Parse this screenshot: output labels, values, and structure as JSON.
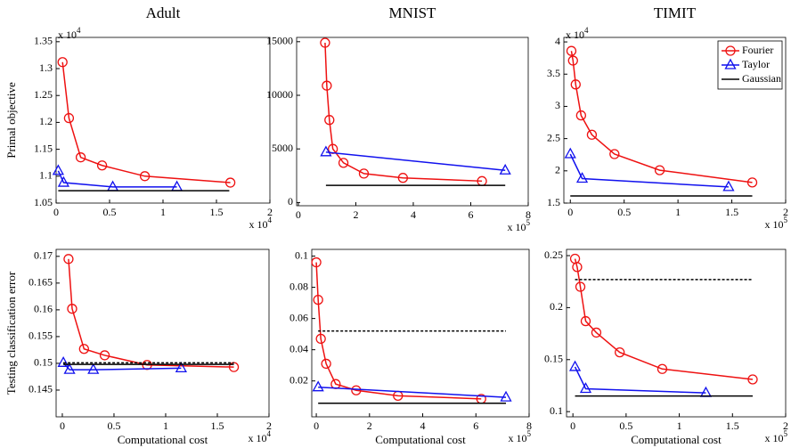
{
  "chart_data": [
    {
      "type": "line",
      "title": "Adult",
      "ylabel": "Primal objective",
      "x_multiplier": {
        "text": "x 10",
        "power": "4"
      },
      "y_multiplier": {
        "text": "x 10",
        "power": "4"
      },
      "xlim": [
        0,
        2
      ],
      "xticks": [
        0,
        0.5,
        1,
        1.5,
        2
      ],
      "ylim": [
        1.05,
        1.358
      ],
      "yticks": [
        1.05,
        1.1,
        1.15,
        1.2,
        1.25,
        1.3,
        1.35
      ],
      "series": [
        {
          "name": "Fourier",
          "color": "#ee1111",
          "marker": "circle",
          "x": [
            0.06,
            0.12,
            0.23,
            0.43,
            0.83,
            1.63
          ],
          "values": [
            1.312,
            1.208,
            1.135,
            1.12,
            1.1,
            1.088
          ]
        },
        {
          "name": "Taylor",
          "color": "#1111ee",
          "marker": "triangle",
          "x": [
            0.02,
            0.07,
            0.53,
            1.13
          ],
          "values": [
            1.11,
            1.088,
            1.08,
            1.08
          ]
        },
        {
          "name": "Gaussian",
          "color": "#000000",
          "x": [
            0.02,
            1.62
          ],
          "values": [
            1.073,
            1.073
          ]
        }
      ]
    },
    {
      "type": "line",
      "title": "MNIST",
      "x_multiplier": {
        "text": "x 10",
        "power": "5"
      },
      "xlim": [
        -0.06,
        8
      ],
      "xticks": [
        0,
        2,
        4,
        6,
        8
      ],
      "ylim": [
        -300,
        15400
      ],
      "yticks": [
        0,
        5000,
        10000,
        15000
      ],
      "series": [
        {
          "name": "Fourier",
          "color": "#ee1111",
          "marker": "circle",
          "x": [
            0.93,
            0.99,
            1.08,
            1.2,
            1.57,
            2.28,
            3.64,
            6.39
          ],
          "values": [
            14900,
            10900,
            7700,
            5000,
            3700,
            2700,
            2300,
            2000
          ]
        },
        {
          "name": "Taylor",
          "color": "#1111ee",
          "marker": "triangle",
          "x": [
            0.96,
            7.2
          ],
          "values": [
            4700,
            3000
          ]
        },
        {
          "name": "Gaussian",
          "color": "#000000",
          "x": [
            0.96,
            7.2
          ],
          "values": [
            1600,
            1600
          ]
        }
      ]
    },
    {
      "type": "line",
      "title": "TIMIT",
      "legend": "top-right",
      "x_multiplier": {
        "text": "x 10",
        "power": "5"
      },
      "y_multiplier": {
        "text": "x 10",
        "power": "4"
      },
      "xlim": [
        -0.06,
        2
      ],
      "xticks": [
        0,
        0.5,
        1,
        1.5,
        2
      ],
      "ylim": [
        1.5,
        4.07
      ],
      "yticks": [
        1.5,
        2,
        2.5,
        3,
        3.5,
        4
      ],
      "series": [
        {
          "name": "Fourier",
          "color": "#ee1111",
          "marker": "circle",
          "x": [
            0.01,
            0.025,
            0.05,
            0.1,
            0.2,
            0.41,
            0.83,
            1.69
          ],
          "values": [
            3.86,
            3.71,
            3.34,
            2.86,
            2.56,
            2.26,
            2.01,
            1.82
          ]
        },
        {
          "name": "Taylor",
          "color": "#1111ee",
          "marker": "triangle",
          "x": [
            0,
            0.11,
            1.47
          ],
          "values": [
            2.26,
            1.88,
            1.75
          ]
        },
        {
          "name": "Gaussian",
          "color": "#000000",
          "x": [
            0,
            1.69
          ],
          "values": [
            1.61,
            1.61
          ]
        }
      ]
    },
    {
      "type": "line",
      "ylabel": "Testing classification error",
      "xlabel": "Computational cost",
      "x_multiplier": {
        "text": "x 10",
        "power": "4"
      },
      "xlim": [
        -0.06,
        2
      ],
      "xticks": [
        0,
        0.5,
        1,
        1.5,
        2
      ],
      "ylim": [
        0.14,
        0.1713
      ],
      "yticks": [
        0.145,
        0.15,
        0.155,
        0.16,
        0.165,
        0.17
      ],
      "series": [
        {
          "name": "Fourier",
          "color": "#ee1111",
          "marker": "circle",
          "x": [
            0.06,
            0.095,
            0.21,
            0.41,
            0.82,
            1.66
          ],
          "values": [
            0.1695,
            0.1602,
            0.1527,
            0.1515,
            0.1497,
            0.1493
          ]
        },
        {
          "name": "Taylor",
          "color": "#1111ee",
          "marker": "triangle",
          "x": [
            0.01,
            0.07,
            0.3,
            1.15
          ],
          "values": [
            0.1501,
            0.1488,
            0.1488,
            0.1491
          ]
        },
        {
          "name": "Gaussian",
          "color": "#000000",
          "x": [
            0.01,
            1.66
          ],
          "values": [
            0.1498,
            0.1498
          ]
        },
        {
          "color": "#000000",
          "dash": true,
          "x": [
            0.01,
            1.66
          ],
          "values": [
            0.1501,
            0.1501
          ]
        }
      ]
    },
    {
      "type": "line",
      "xlabel": "Computational cost",
      "x_multiplier": {
        "text": "x 10",
        "power": "5"
      },
      "xlim": [
        -0.17,
        8
      ],
      "xticks": [
        0,
        2,
        4,
        6,
        8
      ],
      "ylim": [
        -0.003,
        0.1043
      ],
      "yticks": [
        0.02,
        0.04,
        0.06,
        0.08,
        0.1
      ],
      "series": [
        {
          "name": "Fourier",
          "color": "#ee1111",
          "marker": "circle",
          "x": [
            0,
            0.07,
            0.17,
            0.37,
            0.73,
            1.5,
            3.07,
            6.2
          ],
          "values": [
            0.096,
            0.072,
            0.047,
            0.031,
            0.018,
            0.014,
            0.0105,
            0.0085
          ]
        },
        {
          "name": "Taylor",
          "color": "#1111ee",
          "marker": "triangle",
          "x": [
            0.07,
            7.13
          ],
          "values": [
            0.016,
            0.0095
          ]
        },
        {
          "name": "Gaussian",
          "color": "#000000",
          "x": [
            0.07,
            7.13
          ],
          "values": [
            0.0057,
            0.0057
          ]
        },
        {
          "color": "#000000",
          "dash": true,
          "x": [
            0.07,
            7.13
          ],
          "values": [
            0.052,
            0.052
          ]
        }
      ]
    },
    {
      "type": "line",
      "xlabel": "Computational cost",
      "x_multiplier": {
        "text": "x 10",
        "power": "5"
      },
      "xlim": [
        -0.06,
        2
      ],
      "xticks": [
        0,
        0.5,
        1,
        1.5,
        2
      ],
      "ylim": [
        0.095,
        0.256
      ],
      "yticks": [
        0.1,
        0.15,
        0.2,
        0.25
      ],
      "series": [
        {
          "name": "Fourier",
          "color": "#ee1111",
          "marker": "circle",
          "x": [
            0.02,
            0.04,
            0.07,
            0.12,
            0.22,
            0.44,
            0.84,
            1.69
          ],
          "values": [
            0.247,
            0.239,
            0.22,
            0.187,
            0.176,
            0.157,
            0.141,
            0.131
          ]
        },
        {
          "name": "Taylor",
          "color": "#1111ee",
          "marker": "triangle",
          "x": [
            0.02,
            0.12,
            1.25
          ],
          "values": [
            0.143,
            0.122,
            0.118
          ]
        },
        {
          "name": "Gaussian",
          "color": "#000000",
          "x": [
            0.02,
            1.69
          ],
          "values": [
            0.115,
            0.115
          ]
        },
        {
          "color": "#000000",
          "dash": true,
          "x": [
            0.02,
            1.69
          ],
          "values": [
            0.227,
            0.227
          ]
        }
      ]
    }
  ]
}
